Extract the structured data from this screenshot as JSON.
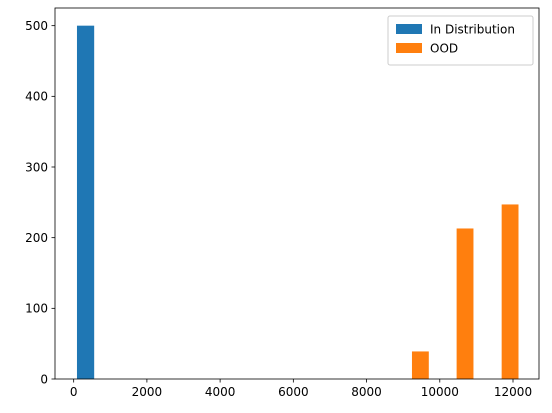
{
  "chart_data": {
    "type": "bar",
    "title": "",
    "xlabel": "",
    "ylabel": "",
    "xlim": [
      -510,
      12710
    ],
    "ylim": [
      0,
      525
    ],
    "xticks": [
      0,
      2000,
      4000,
      6000,
      8000,
      10000,
      12000
    ],
    "yticks": [
      0,
      100,
      200,
      300,
      400,
      500
    ],
    "xtick_labels": [
      "0",
      "2000",
      "4000",
      "6000",
      "8000",
      "10000",
      "12000"
    ],
    "ytick_labels": [
      "0",
      "100",
      "200",
      "300",
      "400",
      "500"
    ],
    "grid": false,
    "legend": {
      "position": "top-right",
      "entries": [
        "In Distribution",
        "OOD"
      ]
    },
    "series": [
      {
        "name": "In Distribution",
        "color": "#1f77b4",
        "bars": [
          {
            "x0": 90,
            "x1": 560,
            "value": 500
          }
        ]
      },
      {
        "name": "OOD",
        "color": "#ff7f0e",
        "bars": [
          {
            "x0": 9240,
            "x1": 9700,
            "value": 39
          },
          {
            "x0": 10460,
            "x1": 10920,
            "value": 213
          },
          {
            "x0": 11690,
            "x1": 12150,
            "value": 247
          }
        ]
      }
    ]
  }
}
